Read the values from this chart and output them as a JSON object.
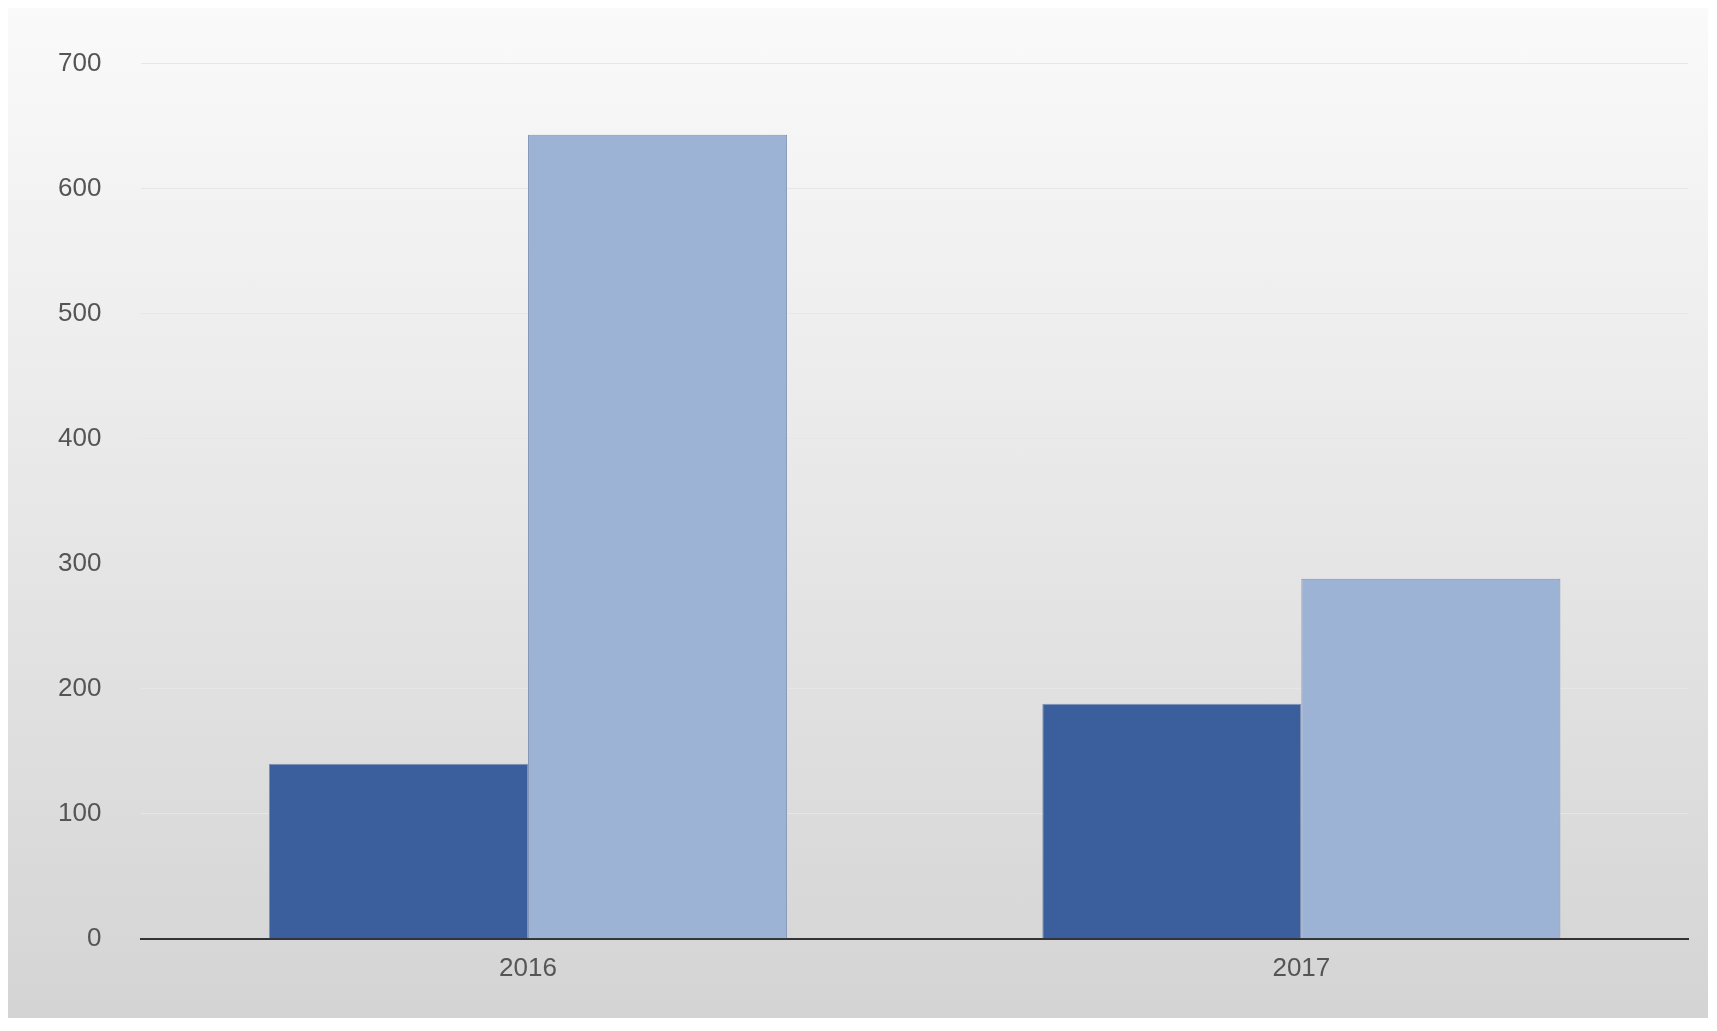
{
  "chart_data": {
    "type": "bar",
    "categories": [
      "2016",
      "2017"
    ],
    "series": [
      {
        "color": "#3a5f9c",
        "values": [
          140,
          188
        ]
      },
      {
        "color": "#9db3d6",
        "values": [
          643,
          288
        ]
      }
    ],
    "ylim": [
      0,
      700
    ],
    "yticks": [
      0,
      100,
      200,
      300,
      400,
      500,
      600,
      700
    ],
    "grid": "y"
  }
}
